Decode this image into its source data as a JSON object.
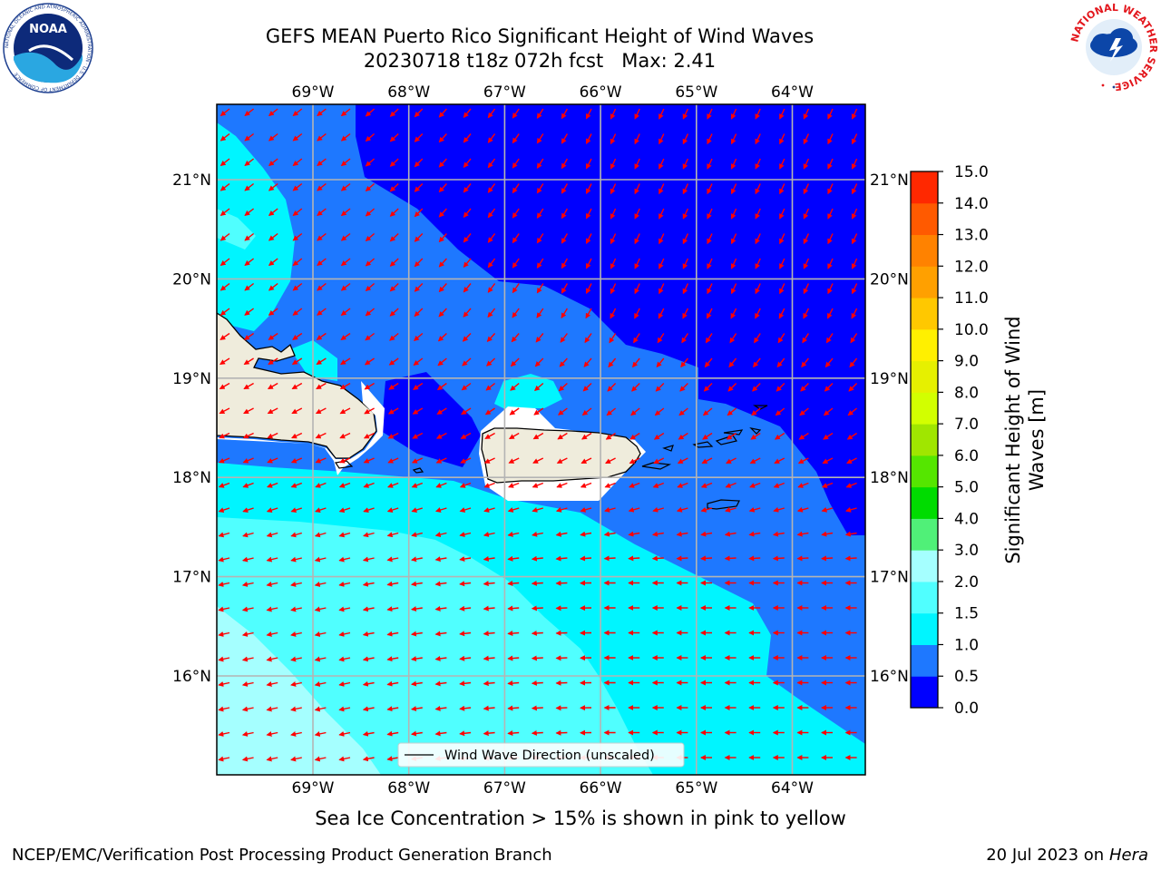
{
  "header": {
    "title_line1": "GEFS MEAN Puerto Rico Significant Height of Wind Waves",
    "title_line2": "20230718 t18z 072h fcst   Max: 2.41"
  },
  "logos": {
    "left": "NOAA",
    "left_ring": "NATIONAL OCEANIC AND ATMOSPHERIC ADMINISTRATION · U.S. DEPARTMENT OF COMMERCE",
    "right": "NATIONAL WEATHER SERVICE"
  },
  "map": {
    "lon_labels": [
      "69°W",
      "68°W",
      "67°W",
      "66°W",
      "65°W",
      "64°W"
    ],
    "lat_labels": [
      "21°N",
      "20°N",
      "19°N",
      "18°N",
      "17°N",
      "16°N"
    ],
    "legend_label": "Wind Wave Direction (unscaled)"
  },
  "colorbar": {
    "label_line1": "Significant Height of Wind",
    "label_line2": "Waves [m]",
    "ticks": [
      "0.0",
      "0.5",
      "1.0",
      "1.5",
      "2.0",
      "3.0",
      "4.0",
      "5.0",
      "6.0",
      "7.0",
      "8.0",
      "9.0",
      "10.0",
      "11.0",
      "12.0",
      "13.0",
      "14.0",
      "15.0"
    ],
    "colors": [
      "#0000ff",
      "#1e78ff",
      "#00f5ff",
      "#50ffff",
      "#a5ffff",
      "#50f078",
      "#00dc00",
      "#55e600",
      "#a0e600",
      "#d2ff00",
      "#e6f000",
      "#fff000",
      "#ffc800",
      "#ffa000",
      "#ff8200",
      "#ff5a00",
      "#ff2800",
      "#ff0000"
    ]
  },
  "caption": "Sea Ice Concentration > 15% is shown in pink to yellow",
  "footer": {
    "left": "NCEP/EMC/Verification Post Processing Product Generation Branch",
    "right_prefix": "20 Jul 2023 on ",
    "right_host": "Hera"
  }
}
